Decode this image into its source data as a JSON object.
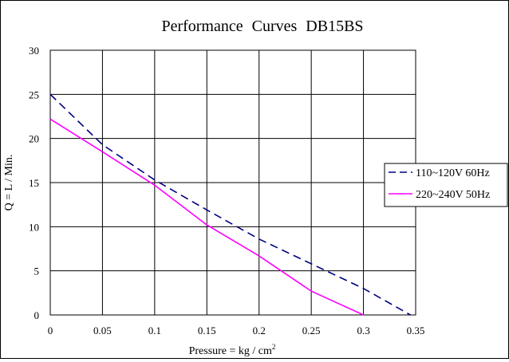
{
  "chart_data": {
    "type": "line",
    "title": "Performance Curves DB15BS",
    "xlabel": "Pressure = kg / cm",
    "xlabel_superscript": "2",
    "ylabel": "Q = L / Min.",
    "xlim": [
      0,
      0.35
    ],
    "ylim": [
      0,
      30
    ],
    "xticks": [
      0,
      0.05,
      0.1,
      0.15,
      0.2,
      0.25,
      0.3,
      0.35
    ],
    "xtick_labels": [
      "0",
      "0.05",
      "0.1",
      "0.15",
      "0.2",
      "0.25",
      "0.3",
      "0.35"
    ],
    "yticks": [
      0,
      5,
      10,
      15,
      20,
      25,
      30
    ],
    "ytick_labels": [
      "0",
      "5",
      "10",
      "15",
      "20",
      "25",
      "30"
    ],
    "grid": true,
    "legend_position": "right",
    "series": [
      {
        "name": "110~120V 60Hz",
        "color": "#000080",
        "style": "dashed",
        "points": [
          [
            0,
            25
          ],
          [
            0.05,
            19.3
          ],
          [
            0.1,
            15.3
          ],
          [
            0.15,
            11.9
          ],
          [
            0.2,
            8.6
          ],
          [
            0.25,
            5.8
          ],
          [
            0.3,
            3.0
          ],
          [
            0.345,
            0
          ]
        ]
      },
      {
        "name": "220~240V 50Hz",
        "color": "#ff00ff",
        "style": "solid",
        "points": [
          [
            0,
            22.2
          ],
          [
            0.05,
            18.5
          ],
          [
            0.1,
            14.7
          ],
          [
            0.15,
            10.2
          ],
          [
            0.2,
            6.7
          ],
          [
            0.25,
            2.7
          ],
          [
            0.3,
            0
          ]
        ]
      }
    ]
  }
}
